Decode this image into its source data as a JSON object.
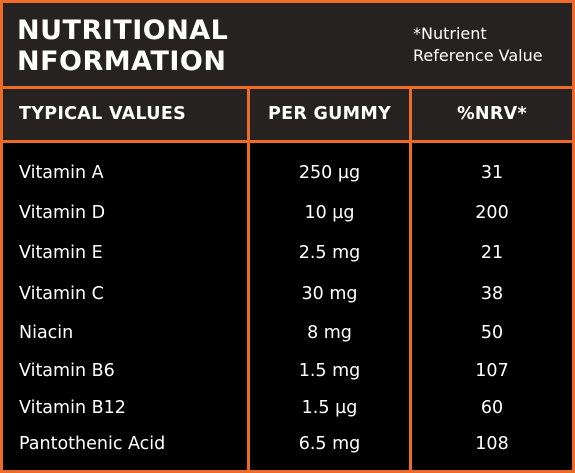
{
  "header": {
    "title_line1": "NUTRITIONAL",
    "title_line2": "NFORMATION",
    "note_line1": "*Nutrient",
    "note_line2": "Reference Value"
  },
  "columns": [
    "TYPICAL VALUES",
    "PER GUMMY",
    "%NRV*"
  ],
  "rows": [
    {
      "nutrient": "Vitamin A",
      "per_gummy": "250 µg",
      "nrv": "31"
    },
    {
      "nutrient": "Vitamin D",
      "per_gummy": "10 µg",
      "nrv": "200"
    },
    {
      "nutrient": "Vitamin E",
      "per_gummy": "2.5 mg",
      "nrv": "21"
    },
    {
      "nutrient": "Vitamin C",
      "per_gummy": "30 mg",
      "nrv": "38"
    },
    {
      "nutrient": "Niacin",
      "per_gummy": "8 mg",
      "nrv": "50"
    },
    {
      "nutrient": "Vitamin B6",
      "per_gummy": "1.5 mg",
      "nrv": "107"
    },
    {
      "nutrient": "Vitamin B12",
      "per_gummy": "1.5 µg",
      "nrv": "60"
    },
    {
      "nutrient": "Pantothenic Acid",
      "per_gummy": "6.5 mg",
      "nrv": "108"
    }
  ],
  "colors": {
    "accent": "#ee6a29",
    "header_background": "#262221",
    "body_background": "#000000",
    "text": "#ffffff"
  }
}
